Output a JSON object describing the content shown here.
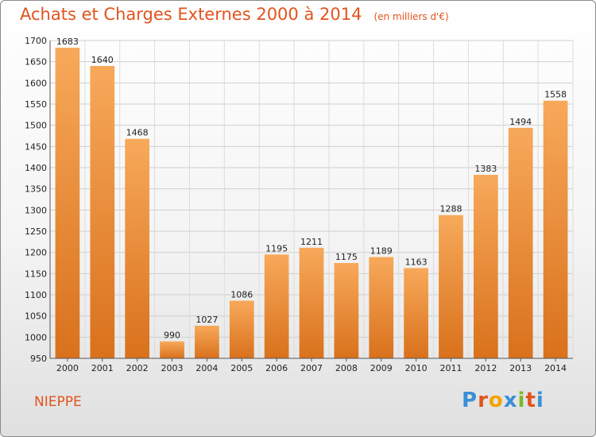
{
  "header": {
    "title": "Achats et Charges Externes 2000 à 2014",
    "unit": "(en milliers d'€)"
  },
  "footer": {
    "commune": "NIEPPE",
    "logo_text": "Proxiti",
    "logo_colors": [
      "#3a8fd6",
      "#e2541d",
      "#f4a300",
      "#3a8fd6",
      "#7ab929",
      "#e2541d",
      "#3a8fd6"
    ]
  },
  "colors": {
    "bar_light": "#f7a95a",
    "bar_dark": "#d9711c",
    "accent": "#e2541d"
  },
  "chart_data": {
    "type": "bar",
    "categories": [
      "2000",
      "2001",
      "2002",
      "2003",
      "2004",
      "2005",
      "2006",
      "2007",
      "2008",
      "2009",
      "2010",
      "2011",
      "2012",
      "2013",
      "2014"
    ],
    "values": [
      1683,
      1640,
      1468,
      990,
      1027,
      1086,
      1195,
      1211,
      1175,
      1189,
      1163,
      1288,
      1383,
      1494,
      1558
    ],
    "ylim": [
      950,
      1700
    ],
    "yticks": [
      950,
      1000,
      1050,
      1100,
      1150,
      1200,
      1250,
      1300,
      1350,
      1400,
      1450,
      1500,
      1550,
      1600,
      1650,
      1700
    ],
    "grid": true
  }
}
